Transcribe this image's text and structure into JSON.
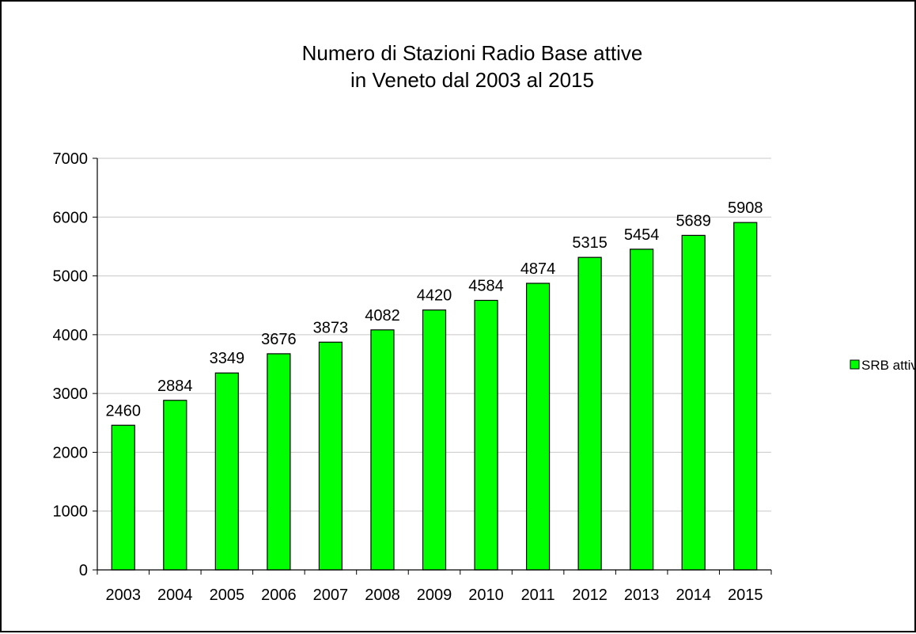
{
  "chart_data": {
    "type": "bar",
    "title": "Numero di Stazioni Radio Base attive",
    "subtitle": "in Veneto dal 2003 al 2015",
    "xlabel": "",
    "ylabel": "",
    "categories": [
      "2003",
      "2004",
      "2005",
      "2006",
      "2007",
      "2008",
      "2009",
      "2010",
      "2011",
      "2012",
      "2013",
      "2014",
      "2015"
    ],
    "series": [
      {
        "name": "SRB attive",
        "color": "#00ff00",
        "values": [
          2460,
          2884,
          3349,
          3676,
          3873,
          4082,
          4420,
          4584,
          4874,
          5315,
          5454,
          5689,
          5908
        ]
      }
    ],
    "ylim": [
      0,
      7000
    ],
    "yticks": [
      0,
      1000,
      2000,
      3000,
      4000,
      5000,
      6000,
      7000
    ],
    "grid": true,
    "legend": "right",
    "data_labels": true
  }
}
